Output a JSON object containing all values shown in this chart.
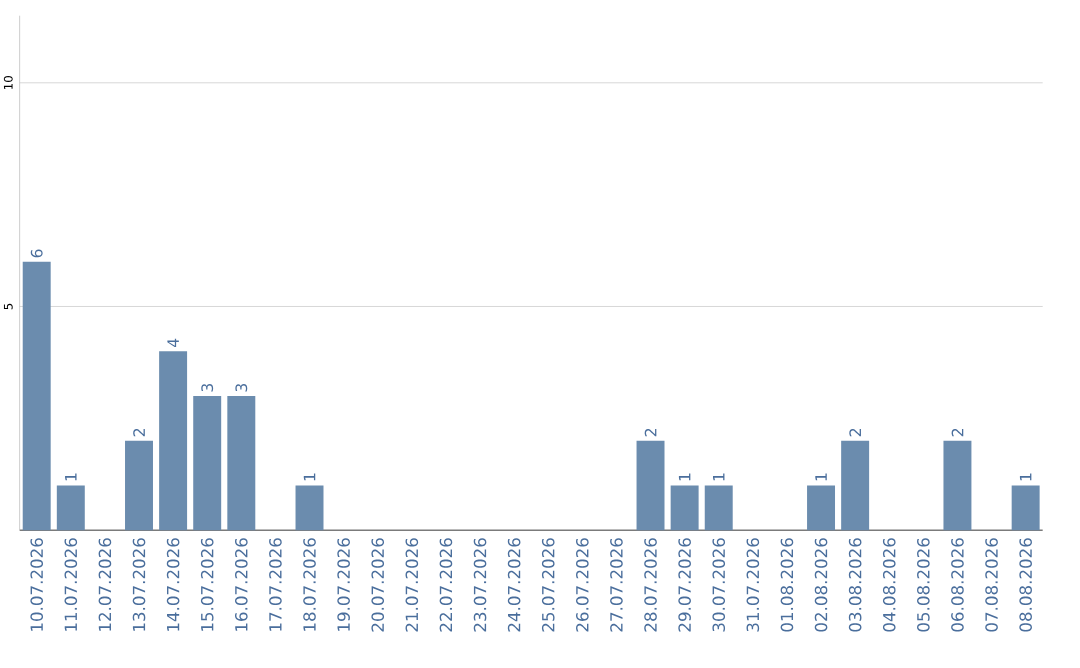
{
  "chart_data": {
    "type": "bar",
    "categories": [
      "10.07.2026",
      "11.07.2026",
      "12.07.2026",
      "13.07.2026",
      "14.07.2026",
      "15.07.2026",
      "16.07.2026",
      "17.07.2026",
      "18.07.2026",
      "19.07.2026",
      "20.07.2026",
      "21.07.2026",
      "22.07.2026",
      "23.07.2026",
      "24.07.2026",
      "25.07.2026",
      "26.07.2026",
      "27.07.2026",
      "28.07.2026",
      "29.07.2026",
      "30.07.2026",
      "31.07.2026",
      "01.08.2026",
      "02.08.2026",
      "03.08.2026",
      "04.08.2026",
      "05.08.2026",
      "06.08.2026",
      "07.08.2026",
      "08.08.2026"
    ],
    "values": [
      6,
      1,
      0,
      2,
      4,
      3,
      3,
      0,
      1,
      0,
      0,
      0,
      0,
      0,
      0,
      0,
      0,
      0,
      2,
      1,
      1,
      0,
      0,
      1,
      2,
      0,
      0,
      2,
      0,
      1
    ],
    "value_labels": [
      "6",
      "1",
      null,
      "2",
      "4",
      "3",
      "3",
      null,
      "1",
      null,
      null,
      null,
      null,
      null,
      null,
      null,
      null,
      null,
      "2",
      "1",
      "1",
      null,
      null,
      "1",
      "2",
      null,
      null,
      "2",
      null,
      "1"
    ],
    "color": "#6b8cae",
    "ylim": [
      0,
      11.5
    ],
    "yticks": [
      5,
      10
    ],
    "grid": "y"
  }
}
